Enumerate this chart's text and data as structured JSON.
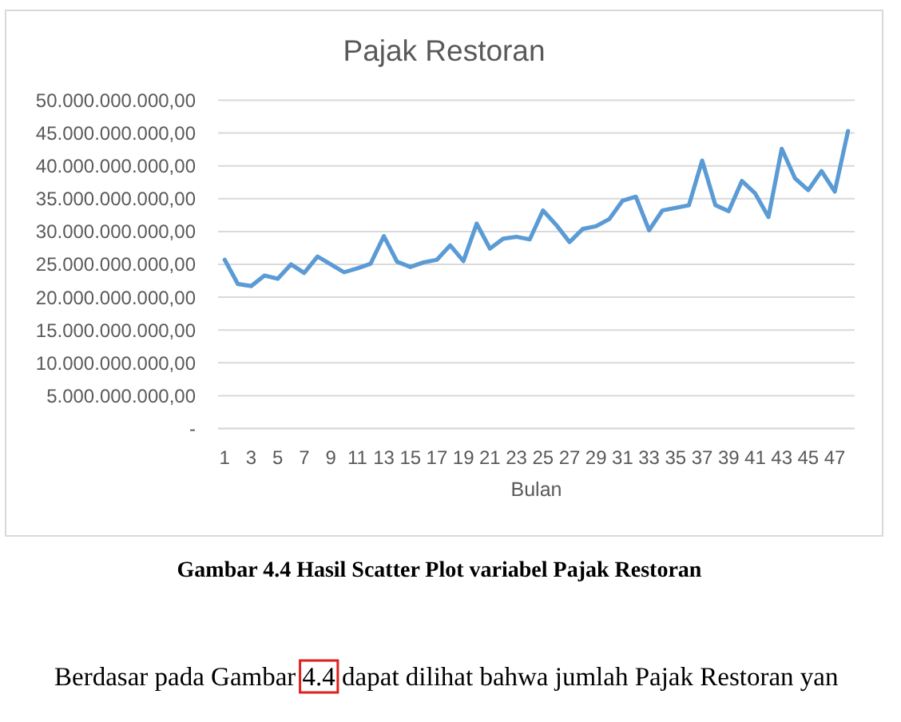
{
  "chart_data": {
    "type": "line",
    "title": "Pajak Restoran",
    "xlabel": "Bulan",
    "x": [
      1,
      2,
      3,
      4,
      5,
      6,
      7,
      8,
      9,
      10,
      11,
      12,
      13,
      14,
      15,
      16,
      17,
      18,
      19,
      20,
      21,
      22,
      23,
      24,
      25,
      26,
      27,
      28,
      29,
      30,
      31,
      32,
      33,
      34,
      35,
      36,
      37,
      38,
      39,
      40,
      41,
      42,
      43,
      44,
      45,
      46,
      47,
      48
    ],
    "values": [
      25700000000,
      22000000000,
      21700000000,
      23300000000,
      22800000000,
      25000000000,
      23700000000,
      26200000000,
      25000000000,
      23800000000,
      24400000000,
      25100000000,
      29300000000,
      25400000000,
      24600000000,
      25300000000,
      25700000000,
      27900000000,
      25500000000,
      31200000000,
      27400000000,
      28900000000,
      29200000000,
      28800000000,
      33200000000,
      31000000000,
      28400000000,
      30400000000,
      30800000000,
      31900000000,
      34700000000,
      35300000000,
      30200000000,
      33200000000,
      33600000000,
      34000000000,
      40800000000,
      34000000000,
      33100000000,
      37700000000,
      35800000000,
      32200000000,
      42600000000,
      38100000000,
      36300000000,
      39200000000,
      36100000000,
      45300000000
    ],
    "color": "#5b9bd5",
    "xlim": [
      0.5,
      48.5
    ],
    "xticks": [
      1,
      3,
      5,
      7,
      9,
      11,
      13,
      15,
      17,
      19,
      21,
      23,
      25,
      27,
      29,
      31,
      33,
      35,
      37,
      39,
      41,
      43,
      45,
      47
    ],
    "ylim": [
      0,
      50000000000
    ],
    "yticks": [
      {
        "value": 0,
        "label": "-"
      },
      {
        "value": 5000000000,
        "label": "5.000.000.000,00"
      },
      {
        "value": 10000000000,
        "label": "10.000.000.000,00"
      },
      {
        "value": 15000000000,
        "label": "15.000.000.000,00"
      },
      {
        "value": 20000000000,
        "label": "20.000.000.000,00"
      },
      {
        "value": 25000000000,
        "label": "25.000.000.000,00"
      },
      {
        "value": 30000000000,
        "label": "30.000.000.000,00"
      },
      {
        "value": 35000000000,
        "label": "35.000.000.000,00"
      },
      {
        "value": 40000000000,
        "label": "40.000.000.000,00"
      },
      {
        "value": 45000000000,
        "label": "45.000.000.000,00"
      },
      {
        "value": 50000000000,
        "label": "50.000.000.000,00"
      }
    ],
    "grid": "y",
    "annotations": [
      "Gambar 4.4 Hasil Scatter Plot variabel Pajak Restoran",
      "Berdasar pada Gambar 4.4 dapat dilihat bahwa jumlah Pajak Restoran yan"
    ]
  }
}
